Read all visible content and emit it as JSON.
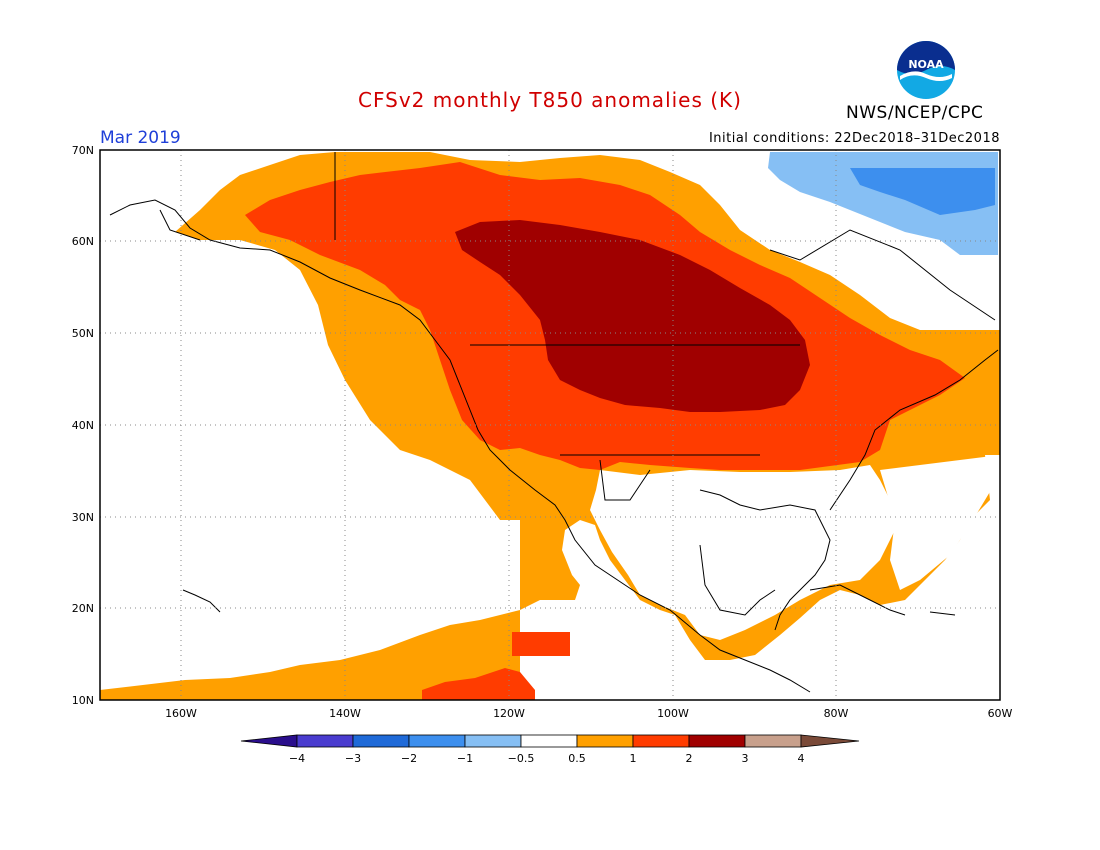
{
  "header": {
    "title": "CFSv2 monthly T850 anomalies (K)",
    "month": "Mar 2019",
    "initial_conditions": "Initial conditions: 22Dec2018–31Dec2018",
    "agency": "NWS/NCEP/CPC",
    "logo_text": "NOAA"
  },
  "axes": {
    "lat_labels": [
      "70N",
      "60N",
      "50N",
      "40N",
      "30N",
      "20N",
      "10N"
    ],
    "lon_labels": [
      "160W",
      "140W",
      "120W",
      "100W",
      "80W",
      "60W"
    ]
  },
  "colorbar": {
    "tick_labels": [
      "−4",
      "−3",
      "−2",
      "−1",
      "−0.5",
      "0.5",
      "1",
      "2",
      "3",
      "4"
    ],
    "colors": [
      "#2a0e8c",
      "#4a3ccf",
      "#1f6ad8",
      "#3d8fee",
      "#86bff4",
      "#ffffff",
      "#ffa000",
      "#ff3c00",
      "#a00000",
      "#c8a08c",
      "#7a4a38"
    ]
  },
  "legend_colors": {
    "cold_1": "#86bff4",
    "cold_2": "#3d8fee",
    "warm_05": "#ffa000",
    "warm_1": "#ff3c00",
    "warm_2": "#a00000"
  }
}
